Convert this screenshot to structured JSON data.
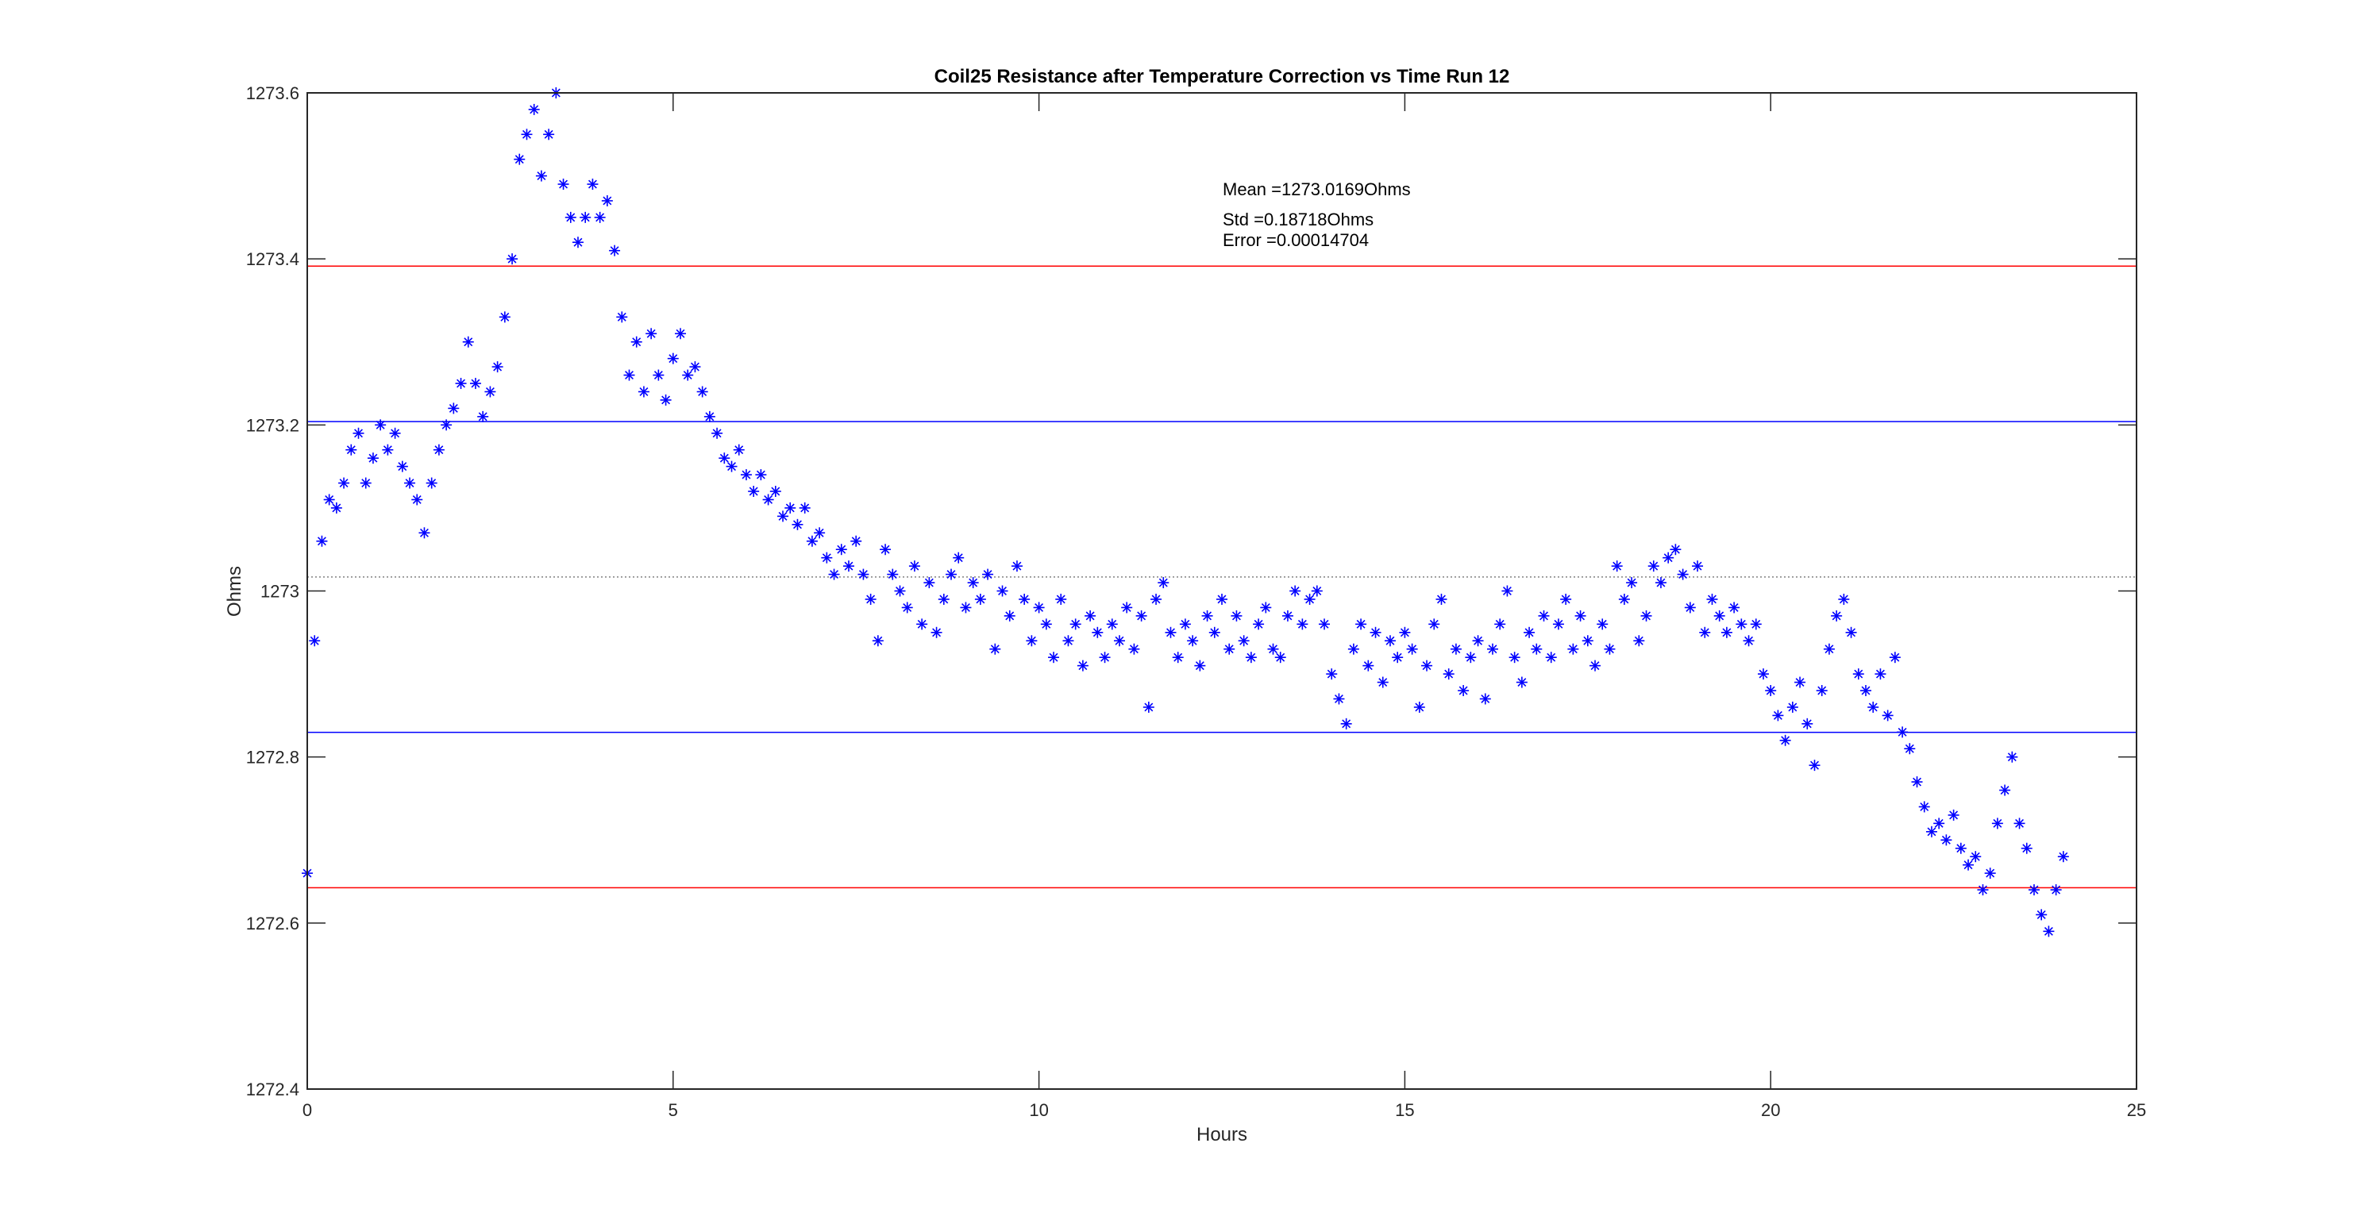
{
  "chart_data": {
    "type": "scatter",
    "title": "Coil25 Resistance after Temperature Correction vs Time Run 12",
    "xlabel": "Hours",
    "ylabel": "Ohms",
    "xlim": [
      0,
      25
    ],
    "ylim": [
      1272.4,
      1273.6
    ],
    "xticks": [
      0,
      5,
      10,
      15,
      20,
      25
    ],
    "xtick_labels": [
      "0",
      "5",
      "10",
      "15",
      "20",
      "25"
    ],
    "yticks": [
      1272.4,
      1272.6,
      1272.8,
      1273,
      1273.2,
      1273.4,
      1273.6
    ],
    "ytick_labels": [
      "1272.4",
      "1272.6",
      "1272.8",
      "1273",
      "1273.2",
      "1273.4",
      "1273.6"
    ],
    "grid": false,
    "annotations": {
      "mean": "Mean =1273.0169Ohms",
      "std": "Std =0.18718Ohms",
      "error": "Error =0.00014704"
    },
    "reference_lines": [
      {
        "name": "mean",
        "value": 1273.0169,
        "color": "#808080",
        "style": "dotted"
      },
      {
        "name": "plus-1-std",
        "value": 1273.20408,
        "color": "#0000ff",
        "style": "solid"
      },
      {
        "name": "minus-1-std",
        "value": 1272.82972,
        "color": "#0000ff",
        "style": "solid"
      },
      {
        "name": "plus-2-std",
        "value": 1273.39126,
        "color": "#ff0000",
        "style": "solid"
      },
      {
        "name": "minus-2-std",
        "value": 1272.64254,
        "color": "#ff0000",
        "style": "solid"
      }
    ],
    "series": [
      {
        "name": "resistance",
        "marker": "asterisk",
        "color": "#0000ff",
        "x_start": 0,
        "x_step": 0.1,
        "values": [
          1272.66,
          1272.94,
          1273.06,
          1273.11,
          1273.1,
          1273.13,
          1273.17,
          1273.19,
          1273.13,
          1273.16,
          1273.2,
          1273.17,
          1273.19,
          1273.15,
          1273.13,
          1273.11,
          1273.07,
          1273.13,
          1273.17,
          1273.2,
          1273.22,
          1273.25,
          1273.3,
          1273.25,
          1273.21,
          1273.24,
          1273.27,
          1273.33,
          1273.4,
          1273.52,
          1273.55,
          1273.58,
          1273.5,
          1273.55,
          1273.6,
          1273.49,
          1273.45,
          1273.42,
          1273.45,
          1273.49,
          1273.45,
          1273.47,
          1273.41,
          1273.33,
          1273.26,
          1273.3,
          1273.24,
          1273.31,
          1273.26,
          1273.23,
          1273.28,
          1273.31,
          1273.26,
          1273.27,
          1273.24,
          1273.21,
          1273.19,
          1273.16,
          1273.15,
          1273.17,
          1273.14,
          1273.12,
          1273.14,
          1273.11,
          1273.12,
          1273.09,
          1273.1,
          1273.08,
          1273.1,
          1273.06,
          1273.07,
          1273.04,
          1273.02,
          1273.05,
          1273.03,
          1273.06,
          1273.02,
          1272.99,
          1272.94,
          1273.05,
          1273.02,
          1273.0,
          1272.98,
          1273.03,
          1272.96,
          1273.01,
          1272.95,
          1272.99,
          1273.02,
          1273.04,
          1272.98,
          1273.01,
          1272.99,
          1273.02,
          1272.93,
          1273.0,
          1272.97,
          1273.03,
          1272.99,
          1272.94,
          1272.98,
          1272.96,
          1272.92,
          1272.99,
          1272.94,
          1272.96,
          1272.91,
          1272.97,
          1272.95,
          1272.92,
          1272.96,
          1272.94,
          1272.98,
          1272.93,
          1272.97,
          1272.86,
          1272.99,
          1273.01,
          1272.95,
          1272.92,
          1272.96,
          1272.94,
          1272.91,
          1272.97,
          1272.95,
          1272.99,
          1272.93,
          1272.97,
          1272.94,
          1272.92,
          1272.96,
          1272.98,
          1272.93,
          1272.92,
          1272.97,
          1273.0,
          1272.96,
          1272.99,
          1273.0,
          1272.96,
          1272.9,
          1272.87,
          1272.84,
          1272.93,
          1272.96,
          1272.91,
          1272.95,
          1272.89,
          1272.94,
          1272.92,
          1272.95,
          1272.93,
          1272.86,
          1272.91,
          1272.96,
          1272.99,
          1272.9,
          1272.93,
          1272.88,
          1272.92,
          1272.94,
          1272.87,
          1272.93,
          1272.96,
          1273.0,
          1272.92,
          1272.89,
          1272.95,
          1272.93,
          1272.97,
          1272.92,
          1272.96,
          1272.99,
          1272.93,
          1272.97,
          1272.94,
          1272.91,
          1272.96,
          1272.93,
          1273.03,
          1272.99,
          1273.01,
          1272.94,
          1272.97,
          1273.03,
          1273.01,
          1273.04,
          1273.05,
          1273.02,
          1272.98,
          1273.03,
          1272.95,
          1272.99,
          1272.97,
          1272.95,
          1272.98,
          1272.96,
          1272.94,
          1272.96,
          1272.9,
          1272.88,
          1272.85,
          1272.82,
          1272.86,
          1272.89,
          1272.84,
          1272.79,
          1272.88,
          1272.93,
          1272.97,
          1272.99,
          1272.95,
          1272.9,
          1272.88,
          1272.86,
          1272.9,
          1272.85,
          1272.92,
          1272.83,
          1272.81,
          1272.77,
          1272.74,
          1272.71,
          1272.72,
          1272.7,
          1272.73,
          1272.69,
          1272.67,
          1272.68,
          1272.64,
          1272.66,
          1272.72,
          1272.76,
          1272.8,
          1272.72,
          1272.69,
          1272.64,
          1272.61,
          1272.59,
          1272.64,
          1272.68
        ]
      }
    ]
  }
}
